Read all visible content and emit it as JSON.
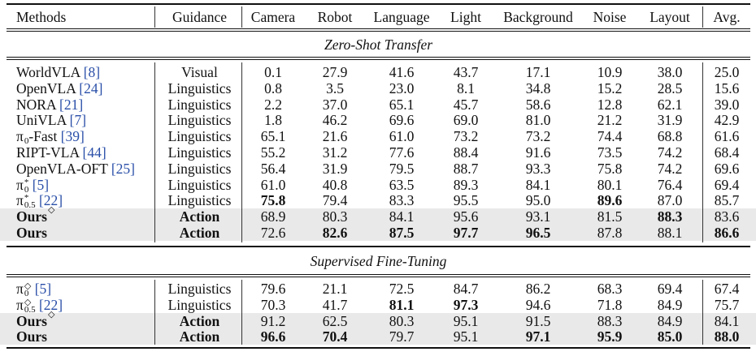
{
  "headers": [
    "Methods",
    "Guidance",
    "Camera",
    "Robot",
    "Language",
    "Light",
    "Background",
    "Noise",
    "Layout",
    "Avg."
  ],
  "sections": {
    "zero_shot": "Zero-Shot Transfer",
    "fine_tuning": "Supervised Fine-Tuning"
  },
  "zero_shot_rows": [
    {
      "name": "WorldVLA",
      "sup": "",
      "sub": "",
      "ref": "[8]",
      "guidance": "Visual",
      "values": [
        "0.1",
        "27.9",
        "41.6",
        "43.7",
        "17.1",
        "10.9",
        "38.0",
        "25.0"
      ],
      "bold": [],
      "highlight": false,
      "bold_row": false
    },
    {
      "name": "OpenVLA",
      "sup": "",
      "sub": "",
      "ref": "[24]",
      "guidance": "Linguistics",
      "values": [
        "0.8",
        "3.5",
        "23.0",
        "8.1",
        "34.8",
        "15.2",
        "28.5",
        "15.6"
      ],
      "bold": [],
      "highlight": false,
      "bold_row": false
    },
    {
      "name": "NORA",
      "sup": "",
      "sub": "",
      "ref": "[21]",
      "guidance": "Linguistics",
      "values": [
        "2.2",
        "37.0",
        "65.1",
        "45.7",
        "58.6",
        "12.8",
        "62.1",
        "39.0"
      ],
      "bold": [],
      "highlight": false,
      "bold_row": false
    },
    {
      "name": "UniVLA",
      "sup": "",
      "sub": "",
      "ref": "[7]",
      "guidance": "Linguistics",
      "values": [
        "1.8",
        "46.2",
        "69.6",
        "69.0",
        "81.0",
        "21.2",
        "31.9",
        "42.9"
      ],
      "bold": [],
      "highlight": false,
      "bold_row": false
    },
    {
      "name": "π",
      "sup": "",
      "sub": "0",
      "suffix": "-Fast",
      "ref": "[39]",
      "guidance": "Linguistics",
      "values": [
        "65.1",
        "21.6",
        "61.0",
        "73.2",
        "73.2",
        "74.4",
        "68.8",
        "61.6"
      ],
      "bold": [],
      "highlight": false,
      "bold_row": false
    },
    {
      "name": "RIPT-VLA",
      "sup": "",
      "sub": "",
      "ref": "[44]",
      "guidance": "Linguistics",
      "values": [
        "55.2",
        "31.2",
        "77.6",
        "88.4",
        "91.6",
        "73.5",
        "74.2",
        "68.4"
      ],
      "bold": [],
      "highlight": false,
      "bold_row": false
    },
    {
      "name": "OpenVLA-OFT",
      "sup": "",
      "sub": "",
      "ref": "[25]",
      "guidance": "Linguistics",
      "values": [
        "56.4",
        "31.9",
        "79.5",
        "88.7",
        "93.3",
        "75.8",
        "74.2",
        "69.6"
      ],
      "bold": [],
      "highlight": false,
      "bold_row": false
    },
    {
      "name": "π",
      "sup": "*",
      "sub": "0",
      "ref": "[5]",
      "guidance": "Linguistics",
      "values": [
        "61.0",
        "40.8",
        "63.5",
        "89.3",
        "84.1",
        "80.1",
        "76.4",
        "69.4"
      ],
      "bold": [],
      "highlight": false,
      "bold_row": false
    },
    {
      "name": "π",
      "sup": "*",
      "sub": "0.5",
      "ref": "[22]",
      "guidance": "Linguistics",
      "values": [
        "75.8",
        "79.4",
        "83.3",
        "95.5",
        "95.0",
        "89.6",
        "87.0",
        "85.7"
      ],
      "bold": [
        0,
        5
      ],
      "highlight": false,
      "bold_row": false
    },
    {
      "name": "Ours",
      "sup": "◇",
      "sub": "",
      "ref": "",
      "guidance": "Action",
      "values": [
        "68.9",
        "80.3",
        "84.1",
        "95.6",
        "93.1",
        "81.5",
        "88.3",
        "83.6"
      ],
      "bold": [
        6
      ],
      "highlight": true,
      "bold_row": true
    },
    {
      "name": "Ours",
      "sup": "",
      "sub": "",
      "ref": "",
      "guidance": "Action",
      "values": [
        "72.6",
        "82.6",
        "87.5",
        "97.7",
        "96.5",
        "87.8",
        "88.1",
        "86.6"
      ],
      "bold": [
        1,
        2,
        3,
        4,
        7
      ],
      "highlight": true,
      "bold_row": true
    }
  ],
  "fine_tuning_rows": [
    {
      "name": "π",
      "sup": "◇",
      "sub": "0",
      "ref": "[5]",
      "guidance": "Linguistics",
      "values": [
        "79.6",
        "21.1",
        "72.5",
        "84.7",
        "86.2",
        "68.3",
        "69.4",
        "67.4"
      ],
      "bold": [],
      "highlight": false,
      "bold_row": false
    },
    {
      "name": "π",
      "sup": "◇",
      "sub": "0.5",
      "ref": "[22]",
      "guidance": "Linguistics",
      "values": [
        "70.3",
        "41.7",
        "81.1",
        "97.3",
        "94.6",
        "71.8",
        "84.9",
        "75.7"
      ],
      "bold": [
        2,
        3
      ],
      "highlight": false,
      "bold_row": false
    },
    {
      "name": "Ours",
      "sup": "◇",
      "sub": "",
      "ref": "",
      "guidance": "Action",
      "values": [
        "91.2",
        "62.5",
        "80.3",
        "95.1",
        "91.5",
        "88.3",
        "84.9",
        "84.1"
      ],
      "bold": [],
      "highlight": true,
      "bold_row": true
    },
    {
      "name": "Ours",
      "sup": "",
      "sub": "",
      "ref": "",
      "guidance": "Action",
      "values": [
        "96.6",
        "70.4",
        "79.7",
        "95.1",
        "97.1",
        "95.9",
        "85.0",
        "88.0"
      ],
      "bold": [
        0,
        1,
        4,
        5,
        6,
        7
      ],
      "highlight": true,
      "bold_row": true
    }
  ]
}
